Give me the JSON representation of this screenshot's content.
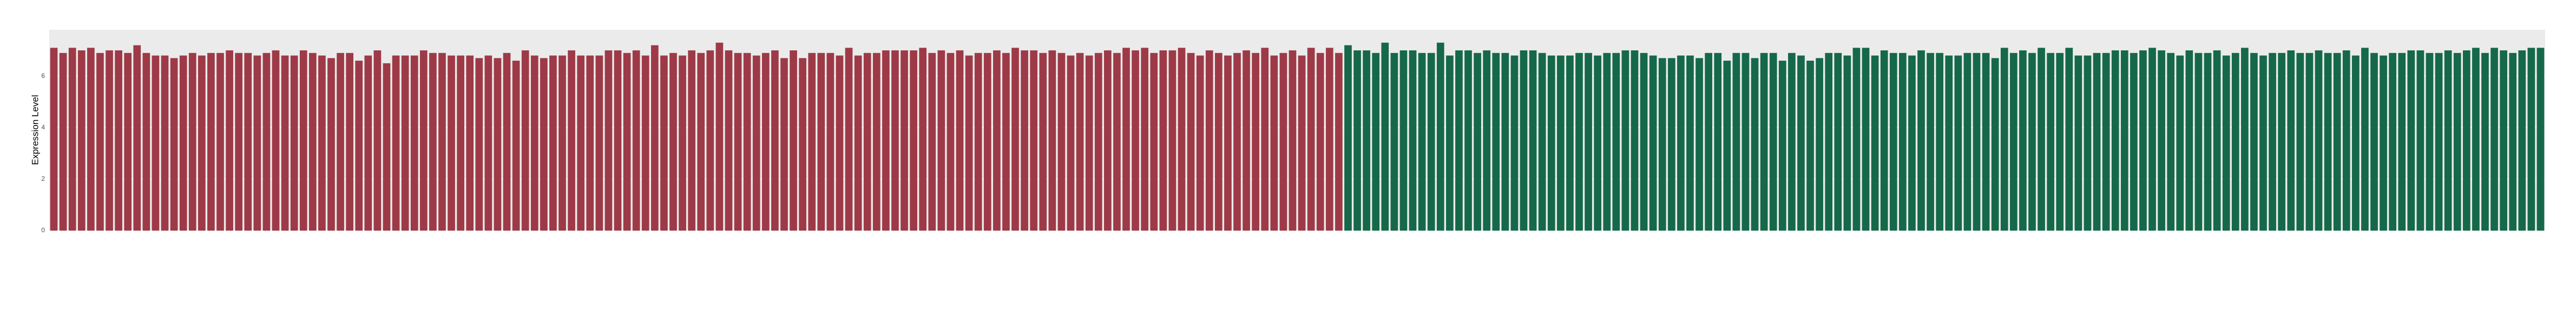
{
  "chart_data": {
    "type": "bar",
    "y_label": "Expression Level",
    "ylim": [
      0,
      7.8
    ],
    "yticks": [
      0,
      2,
      4,
      6
    ],
    "grid": true,
    "series": [
      {
        "color": "#9e3a47",
        "categories": [
          null,
          null,
          null,
          null,
          null,
          null,
          null,
          null,
          null,
          null,
          null,
          null,
          null,
          null,
          null,
          null,
          null,
          null,
          null,
          null,
          null,
          null,
          null,
          null,
          null,
          null,
          null,
          null,
          null,
          null,
          null,
          null,
          null,
          null,
          null,
          null,
          null,
          null,
          null,
          null,
          null,
          null,
          null,
          null,
          null,
          null,
          null,
          null,
          null,
          null,
          null,
          null,
          null,
          null,
          null,
          null,
          null,
          null,
          null,
          null,
          null,
          null,
          null,
          null,
          null,
          null,
          null,
          null,
          null,
          null,
          null,
          null,
          null,
          null,
          null,
          null,
          null,
          null,
          null,
          null,
          null,
          null,
          null,
          null,
          null,
          null,
          null,
          null,
          null,
          null,
          null,
          null,
          null,
          null,
          null,
          null,
          null,
          null,
          null,
          null,
          null,
          null,
          null,
          null,
          null,
          null,
          null,
          null,
          null,
          null,
          null,
          null,
          null,
          null,
          null,
          null,
          null,
          null,
          null,
          null,
          null,
          null,
          null,
          null,
          null,
          null,
          null,
          null,
          null,
          null,
          null,
          null,
          null,
          null,
          null,
          null,
          null,
          null,
          null,
          null
        ],
        "values": [
          7.1,
          6.9,
          7.1,
          7.0,
          7.1,
          6.9,
          7.0,
          7.0,
          6.9,
          7.2,
          6.9,
          6.8,
          6.8,
          6.7,
          6.8,
          6.9,
          6.8,
          6.9,
          6.9,
          7.0,
          6.9,
          6.9,
          6.8,
          6.9,
          7.0,
          6.8,
          6.8,
          7.0,
          6.9,
          6.8,
          6.7,
          6.9,
          6.9,
          6.6,
          6.8,
          7.0,
          6.5,
          6.8,
          6.8,
          6.8,
          7.0,
          6.9,
          6.9,
          6.8,
          6.8,
          6.8,
          6.7,
          6.8,
          6.7,
          6.9,
          6.6,
          7.0,
          6.8,
          6.7,
          6.8,
          6.8,
          7.0,
          6.8,
          6.8,
          6.8,
          7.0,
          7.0,
          6.9,
          7.0,
          6.8,
          7.2,
          6.8,
          6.9,
          6.8,
          7.0,
          6.9,
          7.0,
          7.3,
          7.0,
          6.9,
          6.9,
          6.8,
          6.9,
          7.0,
          6.7,
          7.0,
          6.7,
          6.9,
          6.9,
          6.9,
          6.8,
          7.1,
          6.8,
          6.9,
          6.9,
          7.0,
          7.0,
          7.0,
          7.0,
          7.1,
          6.9,
          7.0,
          6.9,
          7.0,
          6.8,
          6.9,
          6.9,
          7.0,
          6.9,
          7.1,
          7.0,
          7.0,
          6.9,
          7.0,
          6.9,
          6.8,
          6.9,
          6.8,
          6.9,
          7.0,
          6.9,
          7.1,
          7.0,
          7.1,
          6.9,
          7.0,
          7.0,
          7.1,
          6.9,
          6.8,
          7.0,
          6.9,
          6.8,
          6.9,
          7.0,
          6.9,
          7.1,
          6.8,
          6.9,
          7.0,
          6.8,
          7.1,
          6.9,
          7.1,
          6.9
        ]
      },
      {
        "color": "#15694a",
        "categories": [
          null,
          null,
          null,
          null,
          null,
          null,
          null,
          null,
          null,
          null,
          null,
          null,
          null,
          null,
          null,
          null,
          null,
          null,
          null,
          null,
          null,
          null,
          null,
          null,
          null,
          null,
          null,
          null,
          null,
          null,
          null,
          null,
          null,
          null,
          null,
          null,
          null,
          null,
          null,
          null,
          null,
          null,
          null,
          null,
          null,
          null,
          null,
          null,
          null,
          null,
          null,
          null,
          null,
          null,
          null,
          null,
          null,
          null,
          null,
          null,
          null,
          null,
          null,
          null,
          null,
          null,
          null,
          null,
          null,
          null,
          null,
          null,
          null,
          null,
          null,
          null,
          null,
          null,
          null,
          null,
          null,
          null,
          null,
          null,
          null,
          null,
          null,
          null,
          null,
          null,
          null,
          null,
          null,
          null,
          null,
          null,
          null,
          null,
          null,
          null,
          null,
          null,
          null,
          null,
          null,
          null,
          null,
          null,
          null,
          null,
          null,
          null,
          null,
          null,
          null,
          null,
          null,
          null,
          null,
          null,
          null,
          null,
          null,
          null,
          null,
          null,
          null,
          null,
          null,
          null
        ],
        "values": [
          7.2,
          7.0,
          7.0,
          6.9,
          7.3,
          6.9,
          7.0,
          7.0,
          6.9,
          6.9,
          7.3,
          6.8,
          7.0,
          7.0,
          6.9,
          7.0,
          6.9,
          6.9,
          6.8,
          7.0,
          7.0,
          6.9,
          6.8,
          6.8,
          6.8,
          6.9,
          6.9,
          6.8,
          6.9,
          6.9,
          7.0,
          7.0,
          6.9,
          6.8,
          6.7,
          6.7,
          6.8,
          6.8,
          6.7,
          6.9,
          6.9,
          6.6,
          6.9,
          6.9,
          6.7,
          6.9,
          6.9,
          6.6,
          6.9,
          6.8,
          6.6,
          6.7,
          6.9,
          6.9,
          6.8,
          7.1,
          7.1,
          6.8,
          7.0,
          6.9,
          6.9,
          6.8,
          7.0,
          6.9,
          6.9,
          6.8,
          6.8,
          6.9,
          6.9,
          6.9,
          6.7,
          7.1,
          6.9,
          7.0,
          6.9,
          7.1,
          6.9,
          6.9,
          7.1,
          6.8,
          6.8,
          6.9,
          6.9,
          7.0,
          7.0,
          6.9,
          7.0,
          7.1,
          7.0,
          6.9,
          6.8,
          7.0,
          6.9,
          6.9,
          7.0,
          6.8,
          6.9,
          7.1,
          6.9,
          6.8,
          6.9,
          6.9,
          7.0,
          6.9,
          6.9,
          7.0,
          6.9,
          6.9,
          7.0,
          6.8,
          7.1,
          6.9,
          6.8,
          6.9,
          6.9,
          7.0,
          7.0,
          6.9,
          6.9,
          7.0,
          6.9,
          7.0,
          7.1,
          6.9,
          7.1,
          7.0,
          6.9,
          7.0,
          7.1,
          7.1
        ]
      }
    ]
  }
}
